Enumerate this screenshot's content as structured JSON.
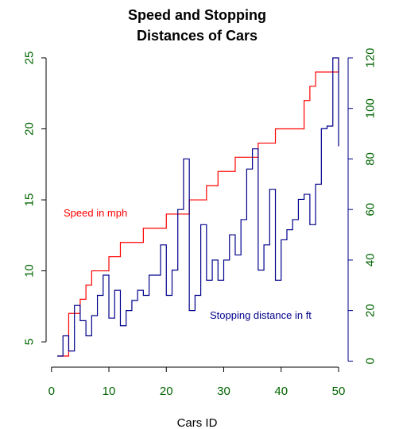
{
  "chart_data": {
    "type": "line",
    "title_lines": [
      "Speed and Stopping",
      "Distances of Cars"
    ],
    "xlabel": "Cars ID",
    "colors": {
      "speed": "#ff0000",
      "distance": "#00008b",
      "axis_ticks": "#006400",
      "left_axis_line": "#000000",
      "right_axis_line": "#00008b"
    },
    "x_axis": {
      "range": [
        1,
        50
      ],
      "ticks": [
        0,
        10,
        20,
        30,
        40,
        50
      ]
    },
    "y_left": {
      "range": [
        4,
        25
      ],
      "ticks": [
        5,
        10,
        15,
        20,
        25
      ]
    },
    "y_right": {
      "range": [
        2,
        120
      ],
      "ticks": [
        0,
        20,
        40,
        60,
        80,
        100,
        120
      ]
    },
    "series": [
      {
        "name": "Speed in mph",
        "axis": "left",
        "step": true,
        "x": [
          1,
          2,
          3,
          4,
          5,
          6,
          7,
          8,
          9,
          10,
          11,
          12,
          13,
          14,
          15,
          16,
          17,
          18,
          19,
          20,
          21,
          22,
          23,
          24,
          25,
          26,
          27,
          28,
          29,
          30,
          31,
          32,
          33,
          34,
          35,
          36,
          37,
          38,
          39,
          40,
          41,
          42,
          43,
          44,
          45,
          46,
          47,
          48,
          49,
          50
        ],
        "values": [
          4,
          4,
          7,
          7,
          8,
          9,
          10,
          10,
          10,
          11,
          11,
          12,
          12,
          12,
          12,
          13,
          13,
          13,
          13,
          14,
          14,
          14,
          14,
          15,
          15,
          15,
          16,
          16,
          17,
          17,
          17,
          18,
          18,
          18,
          18,
          19,
          19,
          19,
          20,
          20,
          20,
          20,
          20,
          22,
          23,
          24,
          24,
          24,
          24,
          25
        ]
      },
      {
        "name": "Stopping distance in ft",
        "axis": "right",
        "step": true,
        "x": [
          1,
          2,
          3,
          4,
          5,
          6,
          7,
          8,
          9,
          10,
          11,
          12,
          13,
          14,
          15,
          16,
          17,
          18,
          19,
          20,
          21,
          22,
          23,
          24,
          25,
          26,
          27,
          28,
          29,
          30,
          31,
          32,
          33,
          34,
          35,
          36,
          37,
          38,
          39,
          40,
          41,
          42,
          43,
          44,
          45,
          46,
          47,
          48,
          49,
          50
        ],
        "values": [
          2,
          10,
          4,
          22,
          16,
          10,
          18,
          26,
          34,
          17,
          28,
          14,
          20,
          24,
          28,
          26,
          34,
          34,
          46,
          26,
          36,
          60,
          80,
          20,
          26,
          54,
          32,
          40,
          32,
          40,
          50,
          42,
          56,
          76,
          84,
          36,
          46,
          68,
          32,
          48,
          52,
          56,
          64,
          66,
          54,
          70,
          92,
          93,
          120,
          85
        ]
      }
    ]
  }
}
